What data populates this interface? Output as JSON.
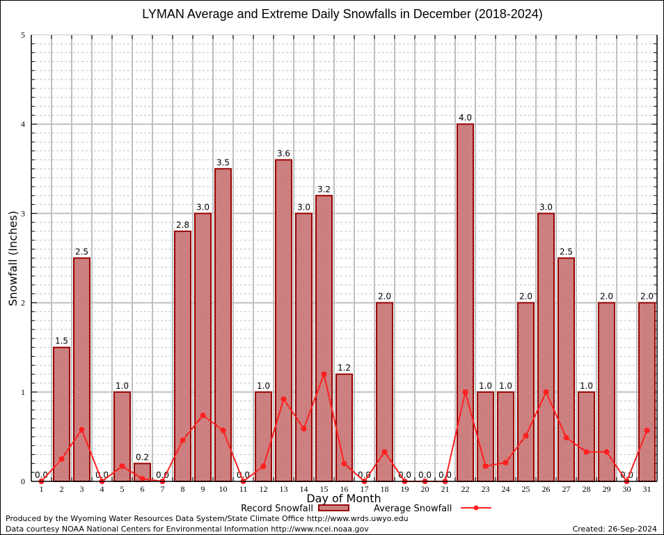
{
  "chart_data": {
    "type": "bar",
    "title": "LYMAN Average and Extreme Daily Snowfalls in December (2018-2024)",
    "xlabel": "Day of Month",
    "ylabel": "Snowfall (Inches)",
    "ylim": [
      0,
      5
    ],
    "yticks": [
      "0",
      "1",
      "2",
      "3",
      "4",
      "5"
    ],
    "grid": true,
    "categories": [
      "1",
      "2",
      "3",
      "4",
      "5",
      "6",
      "7",
      "8",
      "9",
      "10",
      "11",
      "12",
      "13",
      "14",
      "15",
      "16",
      "17",
      "18",
      "19",
      "20",
      "21",
      "22",
      "23",
      "24",
      "25",
      "26",
      "27",
      "28",
      "29",
      "30",
      "31"
    ],
    "series": [
      {
        "name": "Record Snowfall",
        "type": "bar",
        "color": "#990000",
        "values": [
          0.0,
          1.5,
          2.5,
          0.0,
          1.0,
          0.2,
          0.0,
          2.8,
          3.0,
          3.5,
          0.0,
          1.0,
          3.6,
          3.0,
          3.2,
          1.2,
          0.0,
          2.0,
          0.0,
          0.0,
          0.0,
          4.0,
          1.0,
          1.0,
          2.0,
          3.0,
          2.5,
          1.0,
          2.0,
          0.0,
          2.0
        ],
        "labels": [
          "0.0",
          "1.5",
          "2.5",
          "0.0",
          "1.0",
          "0.2",
          "0.0",
          "2.8",
          "3.0",
          "3.5",
          "0.0",
          "1.0",
          "3.6",
          "3.0",
          "3.2",
          "1.2",
          "0.0",
          "2.0",
          "0.0",
          "0.0",
          "0.0",
          "4.0",
          "1.0",
          "1.0",
          "2.0",
          "3.0",
          "2.5",
          "1.0",
          "2.0",
          "0.0",
          "2.0"
        ]
      },
      {
        "name": "Average Snowfall",
        "type": "line",
        "color": "#ff2020",
        "values": [
          0.0,
          0.25,
          0.58,
          0.0,
          0.17,
          0.03,
          0.0,
          0.46,
          0.74,
          0.57,
          0.0,
          0.17,
          0.92,
          0.59,
          1.2,
          0.2,
          0.0,
          0.33,
          0.0,
          0.0,
          0.0,
          1.0,
          0.17,
          0.21,
          0.51,
          1.0,
          0.49,
          0.33,
          0.33,
          0.0,
          0.57
        ]
      }
    ],
    "legend_position": "bottom-center"
  },
  "footer": {
    "produced_by": "Produced by the Wyoming Water Resources Data System/State Climate Office http://www.wrds.uwyo.edu",
    "data_courtesy": "Data courtesy NOAA National Centers for Environmental Information http://www.ncei.noaa.gov",
    "created": "Created: 26-Sep-2024"
  }
}
